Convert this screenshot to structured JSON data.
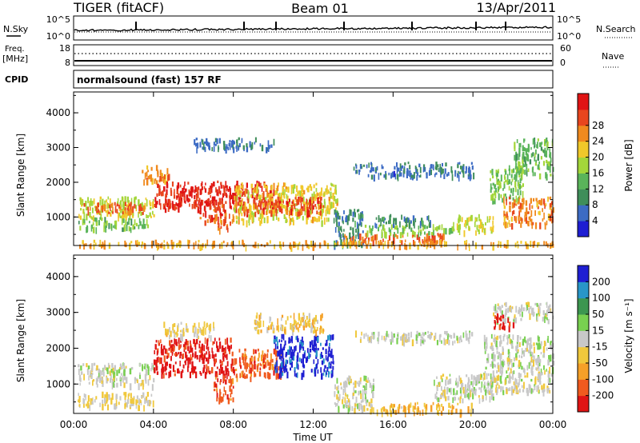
{
  "header": {
    "station": "TIGER (fitACF)",
    "beam": "Beam 01",
    "date": "13/Apr/2011"
  },
  "panels": {
    "nsky": {
      "label": "N.Sky",
      "tick_top": "10^5",
      "tick_bottom": "10^0",
      "right_label": "N.Search",
      "right_tick_top": "10^5",
      "right_tick_bottom": "10^0"
    },
    "freq": {
      "label_line1": "Freq.",
      "label_line2": "[MHz]",
      "tick_top": "18",
      "tick_bottom": "8",
      "right_label": "Nave",
      "right_tick_top": "60",
      "right_tick_bottom": "0"
    },
    "cpid": {
      "label": "CPID",
      "text": "normalsound (fast) 157 RF"
    }
  },
  "chart_data": [
    {
      "type": "heatmap",
      "title": "",
      "xlabel": "Time UT",
      "ylabel": "Slant Range [km]",
      "xticks": [
        "00:00",
        "04:00",
        "08:00",
        "12:00",
        "16:00",
        "20:00",
        "00:00"
      ],
      "xlim_hours": [
        0,
        24
      ],
      "yticks": [
        "1000",
        "2000",
        "3000",
        "4000"
      ],
      "ylim": [
        180,
        4600
      ],
      "colorbar": {
        "label": "Power [dB]",
        "ticks": [
          "4",
          "8",
          "12",
          "16",
          "20",
          "24",
          "28"
        ],
        "range": [
          0,
          30
        ],
        "colors": [
          "#1e1ed2",
          "#3c6bc4",
          "#3f8e5a",
          "#5ab45a",
          "#a3d63a",
          "#f0c82a",
          "#f08a1e",
          "#e8461e",
          "#e01414"
        ]
      },
      "regions": [
        {
          "t": [
            0.2,
            4.0
          ],
          "r": [
            1000,
            1600
          ],
          "v": 16
        },
        {
          "t": [
            0.2,
            3.8
          ],
          "r": [
            700,
            1000
          ],
          "v": 12
        },
        {
          "t": [
            0.5,
            3.5
          ],
          "r": [
            1150,
            1450
          ],
          "v": 24
        },
        {
          "t": [
            3.4,
            4.8
          ],
          "r": [
            2050,
            2500
          ],
          "v": 22
        },
        {
          "t": [
            4.0,
            10.0
          ],
          "r": [
            1250,
            2050
          ],
          "v": 27
        },
        {
          "t": [
            6.2,
            7.6
          ],
          "r": [
            900,
            1500
          ],
          "v": 25
        },
        {
          "t": [
            7.0,
            8.0
          ],
          "r": [
            650,
            1100
          ],
          "v": 22
        },
        {
          "t": [
            8.0,
            13.2
          ],
          "r": [
            900,
            2000
          ],
          "v": 18
        },
        {
          "t": [
            8.5,
            12.5
          ],
          "r": [
            1150,
            1600
          ],
          "v": 25
        },
        {
          "t": [
            6.0,
            10.0
          ],
          "r": [
            3000,
            3300
          ],
          "v": 6
        },
        {
          "t": [
            13.0,
            14.5
          ],
          "r": [
            250,
            1250
          ],
          "v": 8
        },
        {
          "t": [
            13.5,
            18.5
          ],
          "r": [
            300,
            550
          ],
          "v": 24
        },
        {
          "t": [
            14.5,
            19.0
          ],
          "r": [
            550,
            800
          ],
          "v": 14
        },
        {
          "t": [
            15.0,
            18.0
          ],
          "r": [
            800,
            1100
          ],
          "v": 8
        },
        {
          "t": [
            14.0,
            20.0
          ],
          "r": [
            2200,
            2600
          ],
          "v": 6
        },
        {
          "t": [
            19.0,
            21.0
          ],
          "r": [
            600,
            1100
          ],
          "v": 16
        },
        {
          "t": [
            20.8,
            22.5
          ],
          "r": [
            1500,
            2500
          ],
          "v": 14
        },
        {
          "t": [
            21.5,
            24.0
          ],
          "r": [
            800,
            1600
          ],
          "v": 22
        },
        {
          "t": [
            22.0,
            24.0
          ],
          "r": [
            2200,
            3300
          ],
          "v": 12
        },
        {
          "t": [
            0.0,
            24.0
          ],
          "r": [
            200,
            350
          ],
          "v": 20
        }
      ]
    },
    {
      "type": "heatmap",
      "title": "",
      "xlabel": "Time UT",
      "ylabel": "Slant Range [km]",
      "xticks": [
        "00:00",
        "04:00",
        "08:00",
        "12:00",
        "16:00",
        "20:00",
        "00:00"
      ],
      "xlim_hours": [
        0,
        24
      ],
      "yticks": [
        "1000",
        "2000",
        "3000",
        "4000"
      ],
      "ylim": [
        180,
        4600
      ],
      "colorbar": {
        "label": "Velocity [m s⁻¹]",
        "ticks": [
          "200",
          "100",
          "50",
          "15",
          "-15",
          "-50",
          "-100",
          "-200"
        ],
        "range": [
          -250,
          250
        ],
        "colors": [
          "#e01414",
          "#f05a1e",
          "#f5a028",
          "#f0c83c",
          "#c8c8c8",
          "#78d050",
          "#3c9650",
          "#2896c8",
          "#1e1ed2"
        ]
      },
      "regions": [
        {
          "t": [
            0.2,
            4.0
          ],
          "r": [
            1000,
            1600
          ],
          "v": 0
        },
        {
          "t": [
            0.2,
            4.0
          ],
          "r": [
            400,
            800
          ],
          "v": -30
        },
        {
          "t": [
            4.0,
            8.0
          ],
          "r": [
            1300,
            2300
          ],
          "v": -220
        },
        {
          "t": [
            7.0,
            8.0
          ],
          "r": [
            600,
            1300
          ],
          "v": -180
        },
        {
          "t": [
            8.0,
            10.5
          ],
          "r": [
            1200,
            2000
          ],
          "v": -160
        },
        {
          "t": [
            10.0,
            13.0
          ],
          "r": [
            1300,
            2400
          ],
          "v": 220
        },
        {
          "t": [
            9.0,
            12.5
          ],
          "r": [
            2500,
            3000
          ],
          "v": -60
        },
        {
          "t": [
            4.5,
            7.0
          ],
          "r": [
            2350,
            2750
          ],
          "v": -40
        },
        {
          "t": [
            13.0,
            15.0
          ],
          "r": [
            300,
            1250
          ],
          "v": 0
        },
        {
          "t": [
            15.0,
            20.0
          ],
          "r": [
            250,
            500
          ],
          "v": -70
        },
        {
          "t": [
            18.0,
            21.0
          ],
          "r": [
            600,
            1300
          ],
          "v": 0
        },
        {
          "t": [
            20.5,
            24.0
          ],
          "r": [
            800,
            2400
          ],
          "v": 0
        },
        {
          "t": [
            21.0,
            24.0
          ],
          "r": [
            2800,
            3300
          ],
          "v": 0
        },
        {
          "t": [
            21.0,
            22.0
          ],
          "r": [
            2600,
            3000
          ],
          "v": -200
        },
        {
          "t": [
            14.0,
            20.0
          ],
          "r": [
            2200,
            2500
          ],
          "v": 0
        }
      ]
    }
  ],
  "colors": {
    "frame": "#000000",
    "background": "#ffffff"
  }
}
